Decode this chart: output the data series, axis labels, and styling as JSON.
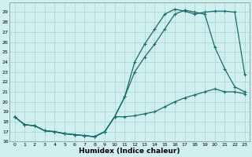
{
  "xlabel": "Humidex (Indice chaleur)",
  "xlim": [
    -0.5,
    23.5
  ],
  "ylim": [
    16,
    30
  ],
  "yticks": [
    16,
    17,
    18,
    19,
    20,
    21,
    22,
    23,
    24,
    25,
    26,
    27,
    28,
    29
  ],
  "xticks": [
    0,
    1,
    2,
    3,
    4,
    5,
    6,
    7,
    8,
    9,
    10,
    11,
    12,
    13,
    14,
    15,
    16,
    17,
    18,
    19,
    20,
    21,
    22,
    23
  ],
  "bg_color": "#cff0ee",
  "grid_color": "#b0d8d4",
  "line_color": "#1a6b6b",
  "line1_x": [
    0,
    1,
    2,
    3,
    4,
    5,
    6,
    7,
    8,
    9,
    10,
    11,
    12,
    13,
    14,
    15,
    16,
    17,
    18,
    19,
    20,
    21,
    22,
    23
  ],
  "line1_y": [
    18.5,
    17.7,
    17.6,
    17.1,
    17.0,
    16.8,
    16.7,
    16.6,
    16.5,
    17.0,
    18.5,
    18.5,
    18.6,
    18.8,
    19.0,
    19.5,
    20.0,
    20.4,
    20.7,
    21.0,
    21.3,
    21.0,
    21.0,
    20.8
  ],
  "line2_x": [
    0,
    1,
    2,
    3,
    4,
    5,
    6,
    7,
    8,
    9,
    10,
    11,
    12,
    13,
    14,
    15,
    16,
    17,
    18,
    19,
    20,
    21,
    22,
    23
  ],
  "line2_y": [
    18.5,
    17.7,
    17.6,
    17.1,
    17.0,
    16.8,
    16.7,
    16.6,
    16.5,
    17.0,
    18.5,
    20.5,
    23.0,
    24.5,
    25.8,
    27.3,
    28.8,
    29.2,
    29.0,
    28.8,
    25.5,
    23.3,
    21.5,
    21.0
  ],
  "line3_x": [
    0,
    1,
    2,
    3,
    4,
    5,
    6,
    7,
    8,
    9,
    10,
    11,
    12,
    13,
    14,
    15,
    16,
    17,
    18,
    19,
    20,
    21,
    22,
    23
  ],
  "line3_y": [
    18.5,
    17.7,
    17.6,
    17.1,
    17.0,
    16.8,
    16.7,
    16.6,
    16.5,
    17.0,
    18.5,
    20.5,
    24.0,
    25.8,
    27.3,
    28.8,
    29.3,
    29.1,
    28.8,
    29.0,
    29.1,
    29.1,
    29.0,
    22.7
  ]
}
